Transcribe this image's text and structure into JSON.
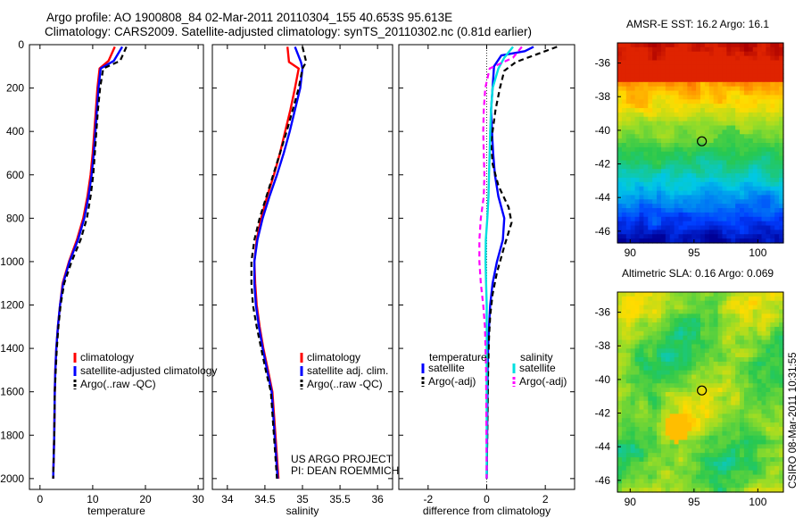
{
  "header": {
    "line1": "Argo profile: AO 1900808_84 02-Mar-2011 20110304_155 40.653S 95.613E",
    "line2": "Climatology: CARS2009. Satellite-adjusted climatology: synTS_20110302.nc (0.81d earlier)"
  },
  "colors": {
    "climatology": "#ff0000",
    "satellite": "#0000ff",
    "argo": "#000000",
    "salinity_satellite": "#00e0e0",
    "salinity_argo": "#ff00ff"
  },
  "credit": "CSIRO 08-Mar-2011 10:31:55",
  "project": {
    "line1": "US ARGO PROJECT",
    "line2": "PI: DEAN ROEMMICH"
  },
  "chart_data": [
    {
      "type": "line",
      "xlabel": "temperature",
      "ylabel": "",
      "xlim": [
        -2,
        31
      ],
      "ylim": [
        2050,
        0
      ],
      "xticks": [
        0,
        10,
        20,
        30
      ],
      "yticks": [
        0,
        200,
        400,
        600,
        800,
        1000,
        1200,
        1400,
        1600,
        1800,
        2000
      ],
      "legend": [
        "climatology",
        "satellite-adjusted climatology",
        "Argo(..raw -QC)"
      ],
      "legend_placement": "lower-right",
      "series": [
        {
          "name": "climatology",
          "style": "solid",
          "color": "#ff0000",
          "x": [
            14.2,
            13.0,
            11.3,
            10.9,
            10.6,
            10.3,
            10.0,
            9.6,
            9.0,
            8.2,
            7.0,
            5.5,
            4.3,
            3.8,
            3.4,
            3.1,
            2.9,
            2.8,
            2.7,
            2.5
          ],
          "y": [
            10,
            75,
            110,
            200,
            300,
            400,
            500,
            600,
            700,
            800,
            900,
            1000,
            1100,
            1200,
            1300,
            1400,
            1500,
            1600,
            1800,
            2000
          ]
        },
        {
          "name": "satellite-adjusted climatology",
          "style": "solid",
          "color": "#0000ff",
          "x": [
            15.6,
            14.0,
            11.5,
            11.1,
            10.8,
            10.5,
            10.2,
            9.8,
            9.2,
            8.4,
            7.2,
            5.6,
            4.4,
            3.8,
            3.4,
            3.1,
            2.9,
            2.8,
            2.7,
            2.5
          ],
          "y": [
            10,
            75,
            110,
            200,
            300,
            400,
            500,
            600,
            700,
            800,
            900,
            1000,
            1100,
            1200,
            1300,
            1400,
            1500,
            1600,
            1800,
            2000
          ]
        },
        {
          "name": "Argo(..raw -QC)",
          "style": "dashed",
          "color": "#000000",
          "x": [
            16.4,
            15.2,
            12.0,
            11.4,
            11.0,
            10.7,
            10.4,
            10.1,
            9.6,
            8.9,
            7.7,
            6.0,
            4.6,
            3.9,
            3.5,
            3.2,
            3.0,
            2.8,
            2.7,
            2.5
          ],
          "y": [
            10,
            75,
            110,
            200,
            300,
            400,
            500,
            600,
            700,
            800,
            900,
            1000,
            1100,
            1200,
            1300,
            1400,
            1500,
            1600,
            1800,
            2000
          ]
        }
      ]
    },
    {
      "type": "line",
      "xlabel": "salinity",
      "xlim": [
        33.8,
        36.2
      ],
      "ylim": [
        2050,
        0
      ],
      "xticks": [
        34,
        34.5,
        35,
        35.5,
        36
      ],
      "legend": [
        "climatology",
        "satellite adj. clim.",
        "Argo(..raw -QC)"
      ],
      "legend_placement": "lower-right",
      "series": [
        {
          "name": "climatology",
          "style": "solid",
          "color": "#ff0000",
          "x": [
            34.8,
            34.82,
            34.95,
            34.9,
            34.84,
            34.77,
            34.7,
            34.62,
            34.53,
            34.45,
            34.39,
            34.36,
            34.37,
            34.39,
            34.43,
            34.48,
            34.54,
            34.6,
            34.68
          ],
          "y": [
            10,
            80,
            110,
            200,
            300,
            400,
            500,
            600,
            700,
            800,
            900,
            1000,
            1100,
            1200,
            1300,
            1400,
            1500,
            1600,
            2000
          ]
        },
        {
          "name": "satellite adj. clim.",
          "style": "solid",
          "color": "#0000ff",
          "x": [
            34.9,
            34.98,
            35.0,
            34.97,
            34.9,
            34.83,
            34.75,
            34.66,
            34.56,
            34.47,
            34.4,
            34.36,
            34.36,
            34.38,
            34.42,
            34.47,
            34.53,
            34.59,
            34.67
          ],
          "y": [
            10,
            80,
            110,
            200,
            300,
            400,
            500,
            600,
            700,
            800,
            900,
            1000,
            1100,
            1200,
            1300,
            1400,
            1500,
            1600,
            2000
          ]
        },
        {
          "name": "Argo(..raw -QC)",
          "style": "dashed",
          "color": "#000000",
          "x": [
            35.0,
            35.05,
            35.0,
            34.95,
            34.87,
            34.79,
            34.7,
            34.61,
            34.52,
            34.43,
            34.36,
            34.32,
            34.32,
            34.34,
            34.39,
            34.45,
            34.51,
            34.58,
            34.66
          ],
          "y": [
            10,
            80,
            110,
            200,
            300,
            400,
            500,
            600,
            700,
            800,
            900,
            1000,
            1100,
            1200,
            1300,
            1400,
            1500,
            1600,
            2000
          ]
        }
      ]
    },
    {
      "type": "line",
      "xlabel": "difference from climatology",
      "xlim": [
        -3,
        3
      ],
      "ylim": [
        2050,
        0
      ],
      "xticks": [
        -2,
        0,
        2
      ],
      "legend": [
        "temperature",
        "satellite",
        "Argo(-adj)",
        "salinity",
        "satellite",
        "Argo(-adj)"
      ],
      "legend_placement": "lower-center",
      "series": [
        {
          "name": "satellite",
          "group": "temperature",
          "style": "solid",
          "color": "#0000ff",
          "x": [
            1.6,
            1.3,
            0.5,
            0.25,
            0.2,
            0.15,
            0.18,
            0.22,
            0.28,
            0.4,
            0.6,
            0.55,
            0.35,
            0.2,
            0.12,
            0.08,
            0.05,
            0.03,
            0.02,
            0.0
          ],
          "y": [
            10,
            30,
            50,
            100,
            200,
            300,
            400,
            500,
            600,
            700,
            800,
            900,
            1000,
            1100,
            1200,
            1300,
            1400,
            1500,
            1700,
            2000
          ]
        },
        {
          "name": "Argo(-adj)",
          "group": "temperature",
          "style": "dashed",
          "color": "#000000",
          "x": [
            2.4,
            1.8,
            1.0,
            0.6,
            0.45,
            0.3,
            0.15,
            0.2,
            0.4,
            0.75,
            0.85,
            0.6,
            0.35,
            0.2,
            0.12,
            0.08,
            0.05,
            0.03,
            0.0
          ],
          "y": [
            10,
            40,
            80,
            120,
            200,
            300,
            450,
            550,
            650,
            750,
            820,
            930,
            1050,
            1150,
            1250,
            1350,
            1500,
            1700,
            2000
          ]
        },
        {
          "name": "satellite",
          "group": "salinity",
          "style": "solid",
          "color": "#00e0e0",
          "x": [
            0.9,
            0.6,
            0.4,
            0.2,
            0.15,
            0.12,
            0.1,
            0.08,
            0.06,
            0.02,
            -0.03,
            -0.04,
            -0.02,
            0.0,
            0.0,
            0.0
          ],
          "y": [
            10,
            60,
            110,
            200,
            300,
            400,
            500,
            600,
            700,
            800,
            900,
            1000,
            1100,
            1200,
            1500,
            2000
          ]
        },
        {
          "name": "Argo(-adj)",
          "group": "salinity",
          "style": "dashed",
          "color": "#ff00ff",
          "x": [
            1.2,
            0.9,
            0.1,
            -0.05,
            -0.1,
            -0.12,
            -0.1,
            -0.08,
            -0.1,
            -0.2,
            -0.25,
            -0.25,
            -0.2,
            -0.12,
            -0.06,
            -0.02,
            0.0
          ],
          "y": [
            10,
            60,
            110,
            200,
            300,
            400,
            500,
            600,
            700,
            800,
            900,
            1000,
            1100,
            1200,
            1300,
            1500,
            2000
          ]
        }
      ]
    },
    {
      "type": "heatmap",
      "title": "AMSR-E SST: 16.2 Argo: 16.1",
      "xlim": [
        89,
        102
      ],
      "ylim": [
        -46.7,
        -34.8
      ],
      "xticks": [
        90,
        95,
        100
      ],
      "yticks": [
        -36,
        -38,
        -40,
        -42,
        -44,
        -46
      ],
      "marker": {
        "lon": 95.613,
        "lat": -40.653
      }
    },
    {
      "type": "heatmap",
      "title": "Altimetric SLA: 0.16 Argo: 0.069",
      "xlim": [
        89,
        102
      ],
      "ylim": [
        -46.7,
        -34.8
      ],
      "xticks": [
        90,
        95,
        100
      ],
      "yticks": [
        -36,
        -38,
        -40,
        -42,
        -44,
        -46
      ],
      "marker": {
        "lon": 95.613,
        "lat": -40.653
      }
    }
  ]
}
